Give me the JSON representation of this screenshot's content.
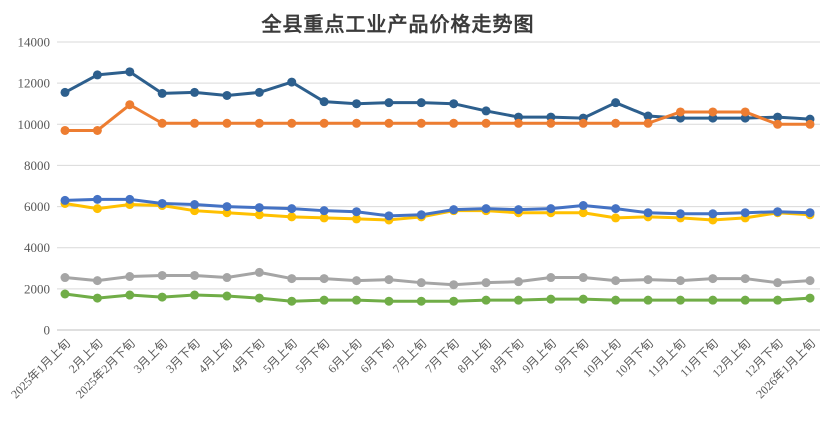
{
  "chart_data": {
    "type": "line",
    "title": "全县重点工业产品价格走势图",
    "xlabel": "",
    "ylabel": "",
    "ylim": [
      0,
      14000
    ],
    "ytick_step": 2000,
    "yticks": [
      0,
      2000,
      4000,
      6000,
      8000,
      10000,
      12000,
      14000
    ],
    "grid": true,
    "legend": "none",
    "categories": [
      "2025年1月上旬",
      "2月上旬",
      "2025年2月下旬",
      "3月上旬",
      "3月下旬",
      "4月上旬",
      "4月下旬",
      "5月上旬",
      "5月下旬",
      "6月上旬",
      "6月下旬",
      "7月上旬",
      "7月下旬",
      "8月上旬",
      "8月下旬",
      "9月上旬",
      "9月下旬",
      "10月上旬",
      "10月下旬",
      "11月上旬",
      "11月下旬",
      "12月上旬",
      "12月下旬",
      "2026年1月上旬"
    ],
    "series": [
      {
        "name": "dark-blue-line",
        "color": "#2D5F8D",
        "values": [
          11550,
          12400,
          12550,
          11500,
          11550,
          11400,
          11550,
          12050,
          11100,
          11000,
          11050,
          11050,
          11000,
          10650,
          10350,
          10350,
          10300,
          11050,
          10400,
          10300,
          10300,
          10300,
          10350,
          10250
        ]
      },
      {
        "name": "orange-line",
        "color": "#ED7D31",
        "values": [
          9700,
          9700,
          10950,
          10050,
          10050,
          10050,
          10050,
          10050,
          10050,
          10050,
          10050,
          10050,
          10050,
          10050,
          10050,
          10050,
          10050,
          10050,
          10050,
          10600,
          10600,
          10600,
          10000,
          10000
        ]
      },
      {
        "name": "yellow-line",
        "color": "#FFC000",
        "values": [
          6150,
          5900,
          6100,
          6050,
          5800,
          5700,
          5600,
          5500,
          5450,
          5400,
          5350,
          5500,
          5800,
          5800,
          5700,
          5700,
          5700,
          5450,
          5500,
          5450,
          5350,
          5450,
          5700,
          5600
        ]
      },
      {
        "name": "blue-line",
        "color": "#4472C4",
        "values": [
          6300,
          6350,
          6350,
          6150,
          6100,
          6000,
          5950,
          5900,
          5800,
          5750,
          5550,
          5600,
          5850,
          5900,
          5850,
          5900,
          6050,
          5900,
          5700,
          5650,
          5650,
          5700,
          5750,
          5700
        ]
      },
      {
        "name": "gray-line",
        "color": "#A5A5A5",
        "values": [
          2550,
          2400,
          2600,
          2650,
          2650,
          2550,
          2800,
          2500,
          2500,
          2400,
          2450,
          2300,
          2200,
          2300,
          2350,
          2550,
          2550,
          2400,
          2450,
          2400,
          2500,
          2500,
          2300,
          2400
        ]
      },
      {
        "name": "green-line",
        "color": "#70AD47",
        "values": [
          1750,
          1550,
          1700,
          1600,
          1700,
          1650,
          1550,
          1400,
          1450,
          1450,
          1400,
          1400,
          1400,
          1450,
          1450,
          1500,
          1500,
          1450,
          1450,
          1450,
          1450,
          1450,
          1450,
          1550
        ]
      }
    ],
    "colors": {
      "gridline": "#D9D9D9",
      "axis_line": "#BFBFBF",
      "tick_label": "#595959",
      "title": "#3b3b3b"
    }
  }
}
